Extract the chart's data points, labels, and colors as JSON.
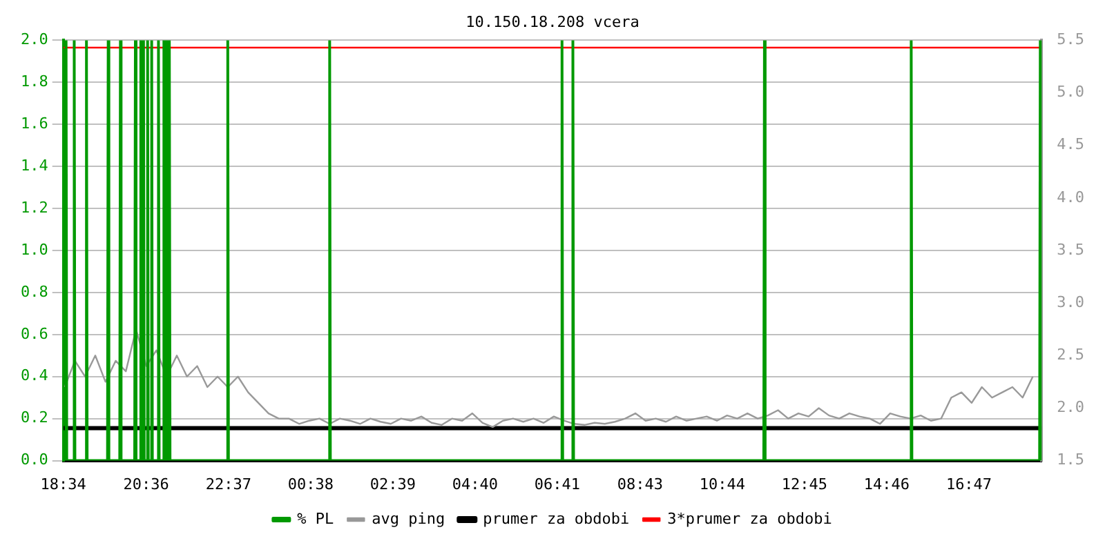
{
  "chart_data": {
    "type": "line",
    "title": "10.150.18.208 vcera",
    "xlim": [
      "--01-01T18:34",
      "--01-02T18:34"
    ],
    "xticks": [
      {
        "value": "--01-01T18:34",
        "label": "18:34"
      },
      {
        "value": "--01-01T20:36",
        "label": "20:36"
      },
      {
        "value": "--01-01T22:37",
        "label": "22:37"
      },
      {
        "value": "--01-02T00:38",
        "label": "00:38"
      },
      {
        "value": "--01-02T02:39",
        "label": "02:39"
      },
      {
        "value": "--01-02T04:40",
        "label": "04:40"
      },
      {
        "value": "--01-02T06:41",
        "label": "06:41"
      },
      {
        "value": "--01-02T08:43",
        "label": "08:43"
      },
      {
        "value": "--01-02T10:44",
        "label": "10:44"
      },
      {
        "value": "--01-02T12:45",
        "label": "12:45"
      },
      {
        "value": "--01-02T14:46",
        "label": "14:46"
      },
      {
        "value": "--01-02T16:47",
        "label": "16:47"
      }
    ],
    "ylim": [
      0,
      2
    ],
    "yticks": [
      {
        "value": 0,
        "label": "0.0"
      },
      {
        "value": 0.2,
        "label": "0.2"
      },
      {
        "value": 0.4,
        "label": "0.4"
      },
      {
        "value": 0.6,
        "label": "0.6"
      },
      {
        "value": 0.8,
        "label": "0.8"
      },
      {
        "value": 1,
        "label": "1.0"
      },
      {
        "value": 1.2,
        "label": "1.2"
      },
      {
        "value": 1.4,
        "label": "1.4"
      },
      {
        "value": 1.6,
        "label": "1.6"
      },
      {
        "value": 1.8,
        "label": "1.8"
      },
      {
        "value": 2,
        "label": "2.0"
      }
    ],
    "y2lim": [
      1.5,
      5.5
    ],
    "y2ticks": [
      1.5,
      {
        "value": 2,
        "label": "2.0"
      },
      2.5,
      {
        "value": 3,
        "label": "3.0"
      },
      3.5,
      {
        "value": 4,
        "label": "4.0"
      },
      4.5,
      {
        "value": 5,
        "label": "5.0"
      },
      5.5
    ],
    "grid": "y",
    "legend": "bottom",
    "series": [
      {
        "name": "% PL",
        "color": "#009900",
        "x": [
          "--01-01T18:34",
          "--01-01T18:37",
          "--01-01T18:38",
          "--01-01T18:39",
          "--01-01T18:49",
          "--01-01T18:50",
          "--01-01T18:51",
          "--01-01T19:07",
          "--01-01T19:08",
          "--01-01T19:09",
          "--01-01T19:39",
          "--01-01T19:40",
          "--01-01T19:41",
          "--01-01T19:57",
          "--01-01T19:58",
          "--01-01T19:59",
          "--01-01T20:19",
          "--01-01T20:20",
          "--01-01T20:21",
          "--01-01T20:27",
          "--01-01T20:28",
          "--01-01T20:29",
          "--01-01T20:31",
          "--01-01T20:32",
          "--01-01T20:33",
          "--01-01T20:37",
          "--01-01T20:38",
          "--01-01T20:39",
          "--01-01T20:43",
          "--01-01T20:44",
          "--01-01T20:45",
          "--01-01T20:53",
          "--01-01T20:54",
          "--01-01T20:55",
          "--01-01T21:01",
          "--01-01T21:02",
          "--01-01T21:03",
          "--01-01T21:05",
          "--01-01T21:06",
          "--01-01T21:07",
          "--01-01T21:09",
          "--01-01T21:10",
          "--01-01T21:11",
          "--01-01T22:35",
          "--01-01T22:36",
          "--01-01T22:37",
          "--01-02T01:05",
          "--01-02T01:06",
          "--01-02T01:07",
          "--01-02T06:47",
          "--01-02T06:48",
          "--01-02T06:49",
          "--01-02T07:03",
          "--01-02T07:04",
          "--01-02T07:05",
          "--01-02T11:45",
          "--01-02T11:46",
          "--01-02T11:47",
          "--01-02T15:21",
          "--01-02T15:22",
          "--01-02T15:23",
          "--01-02T18:31",
          "--01-02T18:32",
          "--01-02T18:33"
        ],
        "values": [
          0,
          0,
          2,
          0,
          0,
          2,
          0,
          0,
          2,
          0,
          0,
          2,
          0,
          0,
          2,
          0,
          0,
          2,
          0,
          0,
          2,
          0,
          0,
          2,
          0,
          0,
          2,
          0,
          0,
          2,
          0,
          0,
          2,
          0,
          0,
          2,
          0,
          0,
          2,
          0,
          0,
          2,
          0,
          0,
          2,
          0,
          0,
          2,
          0,
          0,
          2,
          0,
          0,
          2,
          0,
          0,
          2,
          0,
          0,
          2,
          0,
          0,
          2,
          0
        ]
      },
      {
        "name": "avg ping",
        "color": "#999999",
        "axis": "y2",
        "x": [
          "--01-01T18:36",
          "--01-01T18:51",
          "--01-01T19:06",
          "--01-01T19:21",
          "--01-01T19:36",
          "--01-01T19:51",
          "--01-01T20:06",
          "--01-01T20:21",
          "--01-01T20:36",
          "--01-01T20:51",
          "--01-01T21:06",
          "--01-01T21:21",
          "--01-01T21:36",
          "--01-01T21:51",
          "--01-01T22:06",
          "--01-01T22:21",
          "--01-01T22:36",
          "--01-01T22:51",
          "--01-01T23:06",
          "--01-01T23:21",
          "--01-01T23:36",
          "--01-01T23:51",
          "--01-02T00:06",
          "--01-02T00:21",
          "--01-02T00:36",
          "--01-02T00:51",
          "--01-02T01:06",
          "--01-02T01:21",
          "--01-02T01:36",
          "--01-02T01:51",
          "--01-02T02:06",
          "--01-02T02:21",
          "--01-02T02:36",
          "--01-02T02:51",
          "--01-02T03:06",
          "--01-02T03:21",
          "--01-02T03:36",
          "--01-02T03:51",
          "--01-02T04:06",
          "--01-02T04:21",
          "--01-02T04:36",
          "--01-02T04:51",
          "--01-02T05:06",
          "--01-02T05:21",
          "--01-02T05:36",
          "--01-02T05:51",
          "--01-02T06:06",
          "--01-02T06:21",
          "--01-02T06:36",
          "--01-02T06:51",
          "--01-02T07:06",
          "--01-02T07:21",
          "--01-02T07:36",
          "--01-02T07:51",
          "--01-02T08:06",
          "--01-02T08:21",
          "--01-02T08:36",
          "--01-02T08:51",
          "--01-02T09:06",
          "--01-02T09:21",
          "--01-02T09:36",
          "--01-02T09:51",
          "--01-02T10:06",
          "--01-02T10:21",
          "--01-02T10:36",
          "--01-02T10:51",
          "--01-02T11:06",
          "--01-02T11:21",
          "--01-02T11:36",
          "--01-02T11:51",
          "--01-02T12:06",
          "--01-02T12:21",
          "--01-02T12:36",
          "--01-02T12:51",
          "--01-02T13:06",
          "--01-02T13:21",
          "--01-02T13:36",
          "--01-02T13:51",
          "--01-02T14:06",
          "--01-02T14:21",
          "--01-02T14:36",
          "--01-02T14:51",
          "--01-02T15:06",
          "--01-02T15:21",
          "--01-02T15:36",
          "--01-02T15:51",
          "--01-02T16:06",
          "--01-02T16:21",
          "--01-02T16:36",
          "--01-02T16:51",
          "--01-02T17:06",
          "--01-02T17:21",
          "--01-02T17:36",
          "--01-02T17:51",
          "--01-02T18:06",
          "--01-02T18:21"
        ],
        "values": [
          2.2,
          2.45,
          2.3,
          2.5,
          2.25,
          2.45,
          2.35,
          2.75,
          2.4,
          2.55,
          2.3,
          2.5,
          2.3,
          2.4,
          2.2,
          2.3,
          2.2,
          2.3,
          2.15,
          2.05,
          1.95,
          1.9,
          1.9,
          1.85,
          1.88,
          1.9,
          1.85,
          1.9,
          1.88,
          1.85,
          1.9,
          1.87,
          1.85,
          1.9,
          1.88,
          1.92,
          1.86,
          1.84,
          1.9,
          1.88,
          1.95,
          1.86,
          1.82,
          1.88,
          1.9,
          1.87,
          1.9,
          1.86,
          1.92,
          1.88,
          1.85,
          1.84,
          1.86,
          1.85,
          1.87,
          1.9,
          1.95,
          1.88,
          1.9,
          1.87,
          1.92,
          1.88,
          1.9,
          1.92,
          1.88,
          1.93,
          1.9,
          1.95,
          1.9,
          1.93,
          1.98,
          1.9,
          1.95,
          1.92,
          2.0,
          1.93,
          1.9,
          1.95,
          1.92,
          1.9,
          1.85,
          1.95,
          1.92,
          1.9,
          1.93,
          1.88,
          1.9,
          2.1,
          2.15,
          2.05,
          2.2,
          2.1,
          2.15,
          2.2,
          2.1,
          2.3
        ]
      },
      {
        "name": "prumer za obdobi",
        "color": "#000000",
        "axis": "y2",
        "x": [
          "--01-01T18:34",
          "--01-02T18:34"
        ],
        "values": [
          1.81,
          1.81
        ]
      },
      {
        "name": "3*prumer za obdobi",
        "color": "#ff0000",
        "axis": "y2",
        "x": [
          "--01-01T18:34",
          "--01-02T18:34"
        ],
        "values": [
          5.43,
          5.43
        ]
      }
    ]
  }
}
